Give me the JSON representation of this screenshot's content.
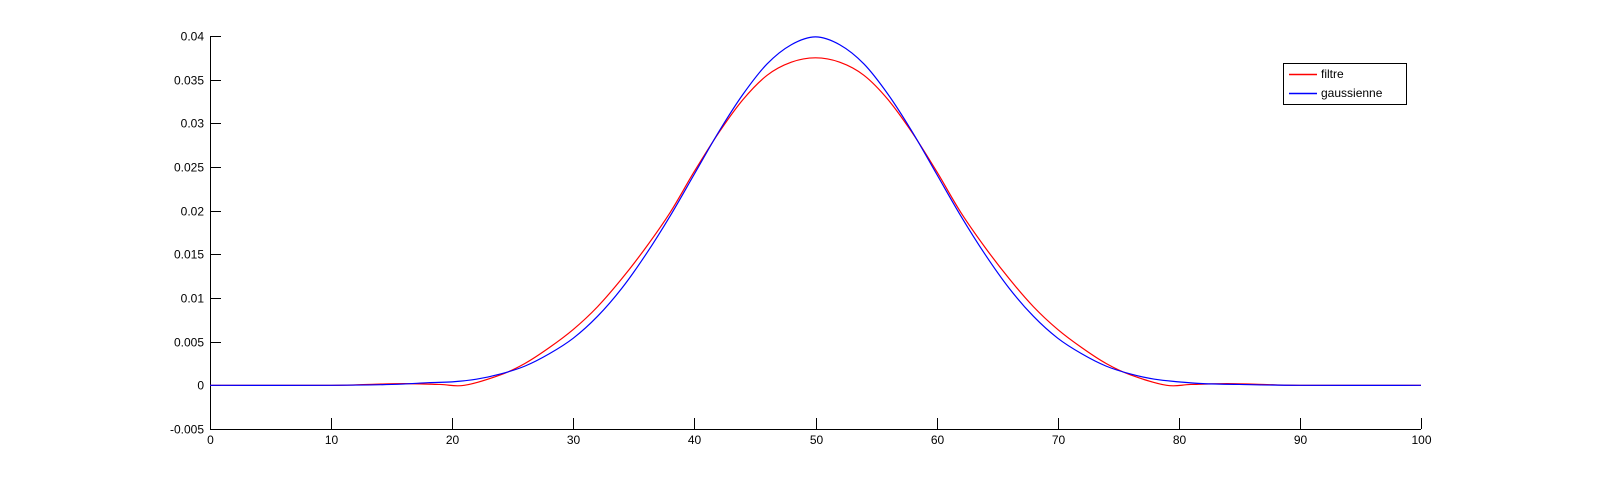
{
  "chart_data": {
    "type": "line",
    "title": "",
    "xlabel": "",
    "ylabel": "",
    "xlim": [
      0,
      100
    ],
    "ylim": [
      -0.005,
      0.04
    ],
    "xticks": [
      0,
      10,
      20,
      30,
      40,
      50,
      60,
      70,
      80,
      90,
      100
    ],
    "yticks": [
      -0.005,
      0,
      0.005,
      0.01,
      0.015,
      0.02,
      0.025,
      0.03,
      0.035,
      0.04
    ],
    "xtick_labels": [
      "0",
      "10",
      "20",
      "30",
      "40",
      "50",
      "60",
      "70",
      "80",
      "90",
      "100"
    ],
    "ytick_labels": [
      "-0.005",
      "0",
      "0.005",
      "0.01",
      "0.015",
      "0.02",
      "0.025",
      "0.03",
      "0.035",
      "0.04"
    ],
    "grid": false,
    "legend_position": "top-right",
    "series": [
      {
        "name": "filtre",
        "color": "#ff0000",
        "x": [
          0,
          10,
          13,
          16,
          19,
          21,
          24,
          26,
          28,
          30,
          32,
          34,
          36,
          38,
          40,
          42,
          44,
          46,
          48,
          50,
          52,
          54,
          56,
          58,
          60,
          62,
          64,
          66,
          68,
          70,
          72,
          74,
          76,
          79,
          81,
          84,
          87,
          90,
          100
        ],
        "y": [
          0,
          0,
          0.0001,
          0.0002,
          0.0001,
          0,
          0.0012,
          0.0025,
          0.0043,
          0.0064,
          0.009,
          0.0122,
          0.0158,
          0.0198,
          0.0245,
          0.0289,
          0.0327,
          0.0355,
          0.037,
          0.0375,
          0.037,
          0.0355,
          0.0327,
          0.0289,
          0.0245,
          0.0198,
          0.0158,
          0.0122,
          0.009,
          0.0064,
          0.0043,
          0.0025,
          0.0012,
          0,
          0.0001,
          0.0002,
          0.0001,
          0,
          0
        ]
      },
      {
        "name": "gaussienne",
        "color": "#0000ff",
        "x": [
          0,
          10,
          15,
          18,
          20,
          22,
          24,
          26,
          28,
          30,
          32,
          34,
          36,
          38,
          40,
          42,
          44,
          46,
          48,
          50,
          52,
          54,
          56,
          58,
          60,
          62,
          64,
          66,
          68,
          70,
          72,
          74,
          76,
          78,
          80,
          82,
          85,
          90,
          100
        ],
        "y": [
          0,
          0,
          0.0001,
          0.0003,
          0.0004,
          0.0007,
          0.0013,
          0.0022,
          0.0036,
          0.0054,
          0.0079,
          0.0111,
          0.015,
          0.0194,
          0.0242,
          0.029,
          0.0333,
          0.0368,
          0.039,
          0.0399,
          0.039,
          0.0368,
          0.0333,
          0.029,
          0.0242,
          0.0194,
          0.015,
          0.0111,
          0.0079,
          0.0054,
          0.0036,
          0.0022,
          0.0013,
          0.0007,
          0.0004,
          0.0002,
          0.0001,
          0,
          0
        ]
      }
    ]
  }
}
